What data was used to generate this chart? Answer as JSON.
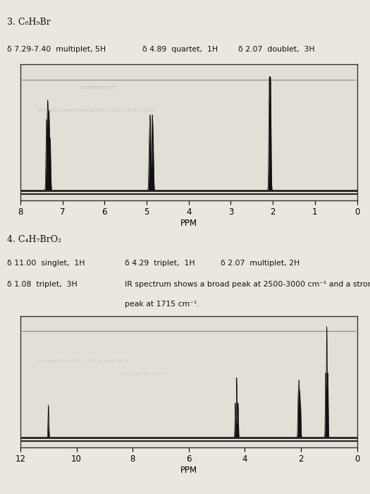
{
  "page_bg": "#d8d4cc",
  "panel_bg": "#e8e5de",
  "spectrum_bg": "#dedad2",
  "spectrum1": {
    "title": "3. C₈H₉Br",
    "label1": "δ 7.29-7.40  multiplet, 5H",
    "label2": "δ 4.89  quartet,  1H",
    "label3": "δ 2.07  doublet,  3H",
    "xlabel": "PPM",
    "xmin": 0,
    "xmax": 8,
    "xticks": [
      0,
      1,
      2,
      3,
      4,
      5,
      6,
      7,
      8
    ]
  },
  "spectrum2": {
    "title": "4. C₄H₇BrO₂",
    "label_row1_a": "δ 11.00  singlet,  1H",
    "label_row1_b": "δ 4.29  triplet,  1H",
    "label_row1_c": "δ 2.07  multiplet, 2H",
    "label_row2_a": "δ 1.08  triplet,  3H",
    "label_row2_b": "IR spectrum shows a broad peak at 2500-3000 cm⁻¹ and a strong",
    "label_row3": "peak at 1715 cm⁻¹.",
    "xlabel": "PPM",
    "xmin": 0,
    "xmax": 12,
    "xticks": [
      0,
      2,
      4,
      6,
      8,
      10,
      12
    ]
  }
}
